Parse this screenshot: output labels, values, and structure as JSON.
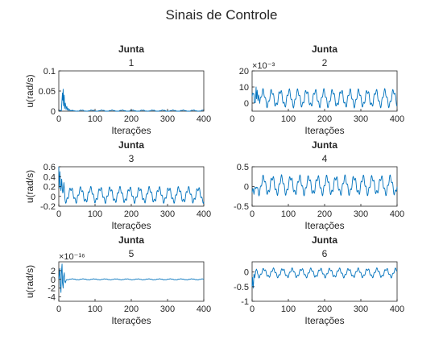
{
  "figure": {
    "title": "Sinais de Controle",
    "colors": {
      "series": "#0072bd",
      "axes": "#262626",
      "background": "#ffffff"
    }
  },
  "chart_data": [
    {
      "type": "line",
      "title": "Junta",
      "subtitle": "1",
      "xlabel": "Iterações",
      "ylabel": "u(rad/s)",
      "xlim": [
        0,
        400
      ],
      "ylim": [
        0,
        0.1
      ],
      "xticks": [
        0,
        100,
        200,
        300,
        400
      ],
      "yticks": [
        0,
        0.05,
        0.1
      ],
      "ytick_labels": [
        "0",
        "0.05",
        "0.1"
      ],
      "exponent": "",
      "grid": false,
      "signal": {
        "n": 400,
        "base": 0.001,
        "amp": 0.0015,
        "period": 28,
        "spikes": [
          [
            5,
            0.002
          ],
          [
            10,
            0.045
          ],
          [
            13,
            0.082
          ],
          [
            15,
            0.04
          ],
          [
            18,
            0.02
          ],
          [
            22,
            0.012
          ],
          [
            26,
            0.007
          ],
          [
            30,
            0.004
          ],
          [
            35,
            0.002
          ]
        ]
      }
    },
    {
      "type": "line",
      "title": "Junta",
      "subtitle": "2",
      "xlabel": "Iterações",
      "ylabel": "",
      "xlim": [
        0,
        400
      ],
      "ylim": [
        -5,
        20
      ],
      "xticks": [
        0,
        100,
        200,
        300,
        400
      ],
      "yticks": [
        0,
        10,
        20
      ],
      "ytick_labels": [
        "0",
        "10",
        "20"
      ],
      "exponent": "×10⁻³",
      "grid": false,
      "signal": {
        "n": 400,
        "base": 3,
        "amp": 4.5,
        "period": 24,
        "spikes": [
          [
            8,
            0.5
          ],
          [
            12,
            15
          ],
          [
            14,
            8
          ],
          [
            18,
            5
          ]
        ]
      }
    },
    {
      "type": "line",
      "title": "Junta",
      "subtitle": "3",
      "xlabel": "Iterações",
      "ylabel": "u(rad/s)",
      "xlim": [
        0,
        400
      ],
      "ylim": [
        -0.2,
        0.6
      ],
      "xticks": [
        0,
        100,
        200,
        300,
        400
      ],
      "yticks": [
        -0.2,
        0,
        0.2,
        0.4,
        0.6
      ],
      "ytick_labels": [
        "-0.2",
        "0",
        "0.2",
        "0.4",
        "0.6"
      ],
      "exponent": "",
      "grid": false,
      "signal": {
        "n": 400,
        "base": 0.03,
        "amp": 0.13,
        "period": 27,
        "spikes": [
          [
            0,
            0.6
          ],
          [
            3,
            0.5
          ],
          [
            8,
            0.35
          ],
          [
            14,
            0.28
          ]
        ]
      }
    },
    {
      "type": "line",
      "title": "Junta",
      "subtitle": "4",
      "xlabel": "Iterações",
      "ylabel": "",
      "xlim": [
        0,
        400
      ],
      "ylim": [
        -0.5,
        0.5
      ],
      "xticks": [
        0,
        100,
        200,
        300,
        400
      ],
      "yticks": [
        -0.5,
        0,
        0.5
      ],
      "ytick_labels": [
        "-0.5",
        "0",
        "0.5"
      ],
      "exponent": "",
      "grid": false,
      "signal": {
        "n": 400,
        "base": 0.03,
        "amp": 0.2,
        "period": 25,
        "spikes": [
          [
            0,
            -0.15
          ],
          [
            5,
            -0.2
          ],
          [
            10,
            -0.05
          ]
        ]
      }
    },
    {
      "type": "line",
      "title": "Junta",
      "subtitle": "5",
      "xlabel": "Iterações",
      "ylabel": "u(rad/s)",
      "xlim": [
        0,
        400
      ],
      "ylim": [
        -5,
        4
      ],
      "xticks": [
        0,
        100,
        200,
        300,
        400
      ],
      "yticks": [
        -4,
        -2,
        0,
        2
      ],
      "ytick_labels": [
        "-4",
        "-2",
        "0",
        "2"
      ],
      "exponent": "×10⁻¹⁶",
      "grid": false,
      "signal": {
        "n": 400,
        "base": 0,
        "amp": 0.1,
        "period": 30,
        "spikes": [
          [
            3,
            2.5
          ],
          [
            6,
            -3
          ],
          [
            9,
            3.5
          ],
          [
            12,
            -2
          ],
          [
            15,
            1.5
          ],
          [
            18,
            -0.8
          ]
        ]
      }
    },
    {
      "type": "line",
      "title": "Junta",
      "subtitle": "6",
      "xlabel": "Iterações",
      "ylabel": "",
      "xlim": [
        0,
        400
      ],
      "ylim": [
        -1,
        0.35
      ],
      "xticks": [
        0,
        100,
        200,
        300,
        400
      ],
      "yticks": [
        -1,
        -0.5,
        0
      ],
      "ytick_labels": [
        "-1",
        "-0.5",
        "0"
      ],
      "exponent": "",
      "grid": false,
      "signal": {
        "n": 400,
        "base": -0.03,
        "amp": 0.13,
        "period": 26,
        "spikes": [
          [
            0,
            -0.5
          ],
          [
            3,
            -0.55
          ],
          [
            7,
            -0.2
          ],
          [
            12,
            0.1
          ]
        ]
      }
    }
  ]
}
